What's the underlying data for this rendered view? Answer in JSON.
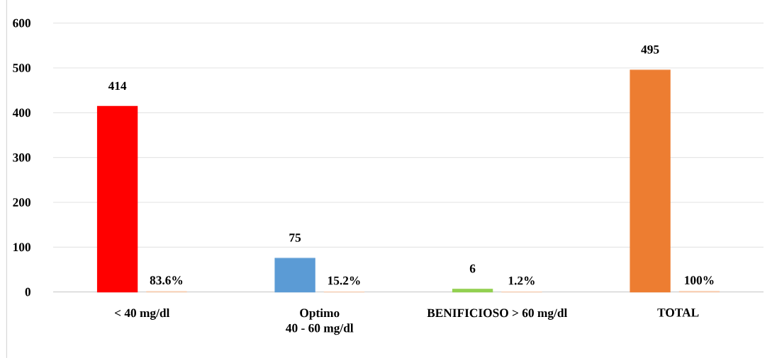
{
  "chart_data": {
    "type": "bar",
    "categories": [
      "< 40 mg/dl",
      "Optimo\n40 - 60 mg/dl",
      "BENIFICIOSO  > 60 mg/dl",
      "TOTAL"
    ],
    "series": [
      {
        "colors": [
          "#ff0000",
          "#5b9bd5",
          "#92d050",
          "#ed7d31"
        ],
        "values": [
          414,
          75,
          6,
          495
        ],
        "value_labels": [
          "414",
          "75",
          "6",
          "495"
        ]
      },
      {
        "colors": [
          "#f8cbad",
          "#f8cbad",
          "#f8cbad",
          "#f8cbad"
        ],
        "values": [
          0.836,
          0.152,
          0.012,
          1
        ],
        "value_labels": [
          "83.6%",
          "15.2%",
          "1.2%",
          "100%"
        ]
      }
    ],
    "ylim": [
      0,
      600
    ],
    "yticks": [
      0,
      100,
      200,
      300,
      400,
      500,
      600
    ],
    "grid": "y"
  }
}
